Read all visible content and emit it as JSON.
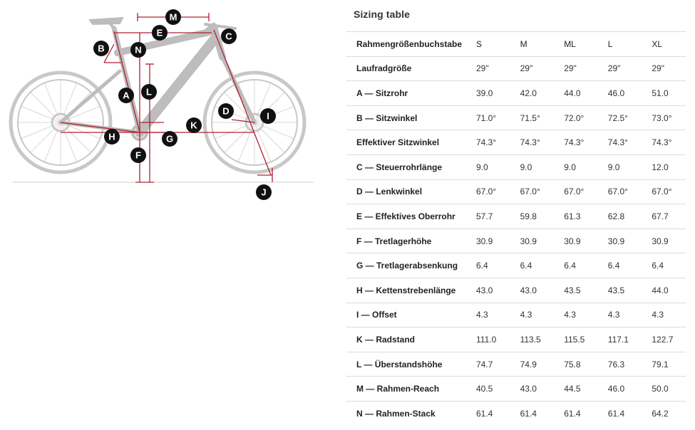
{
  "sizing_table": {
    "title": "Sizing table",
    "header": [
      "Rahmengrößenbuchstabe",
      "S",
      "M",
      "ML",
      "L",
      "XL"
    ],
    "rows": [
      {
        "label": "Laufradgröße",
        "values": [
          "29\"",
          "29\"",
          "29\"",
          "29\"",
          "29\""
        ]
      },
      {
        "label": "A — Sitzrohr",
        "values": [
          "39.0",
          "42.0",
          "44.0",
          "46.0",
          "51.0"
        ]
      },
      {
        "label": "B — Sitzwinkel",
        "values": [
          "71.0°",
          "71.5°",
          "72.0°",
          "72.5°",
          "73.0°"
        ]
      },
      {
        "label": "Effektiver Sitzwinkel",
        "values": [
          "74.3°",
          "74.3°",
          "74.3°",
          "74.3°",
          "74.3°"
        ]
      },
      {
        "label": "C — Steuerrohrlänge",
        "values": [
          "9.0",
          "9.0",
          "9.0",
          "9.0",
          "12.0"
        ]
      },
      {
        "label": "D — Lenkwinkel",
        "values": [
          "67.0°",
          "67.0°",
          "67.0°",
          "67.0°",
          "67.0°"
        ]
      },
      {
        "label": "E — Effektives Oberrohr",
        "values": [
          "57.7",
          "59.8",
          "61.3",
          "62.8",
          "67.7"
        ]
      },
      {
        "label": "F — Tretlagerhöhe",
        "values": [
          "30.9",
          "30.9",
          "30.9",
          "30.9",
          "30.9"
        ]
      },
      {
        "label": "G — Tretlagerabsenkung",
        "values": [
          "6.4",
          "6.4",
          "6.4",
          "6.4",
          "6.4"
        ]
      },
      {
        "label": "H — Kettenstrebenlänge",
        "values": [
          "43.0",
          "43.0",
          "43.5",
          "43.5",
          "44.0"
        ]
      },
      {
        "label": "I — Offset",
        "values": [
          "4.3",
          "4.3",
          "4.3",
          "4.3",
          "4.3"
        ]
      },
      {
        "label": "K — Radstand",
        "values": [
          "111.0",
          "113.5",
          "115.5",
          "117.1",
          "122.7"
        ]
      },
      {
        "label": "L — Überstandshöhe",
        "values": [
          "74.7",
          "74.9",
          "75.8",
          "76.3",
          "79.1"
        ]
      },
      {
        "label": "M — Rahmen-Reach",
        "values": [
          "40.5",
          "43.0",
          "44.5",
          "46.0",
          "50.0"
        ]
      },
      {
        "label": "N — Rahmen-Stack",
        "values": [
          "61.4",
          "61.4",
          "61.4",
          "61.4",
          "64.2"
        ]
      }
    ]
  },
  "diagram": {
    "labels": [
      "M",
      "E",
      "C",
      "B",
      "N",
      "L",
      "A",
      "D",
      "I",
      "K",
      "H",
      "G",
      "F",
      "J"
    ],
    "colors": {
      "measure": "#b02030",
      "bike": "#c8c8c8",
      "label_bg": "#111111",
      "label_text": "#ffffff"
    }
  }
}
